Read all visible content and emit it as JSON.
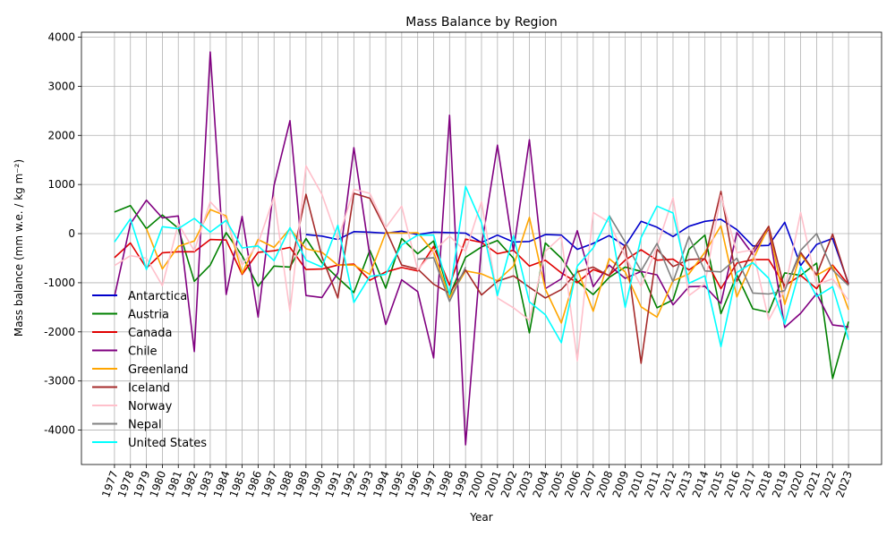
{
  "chart_data": {
    "type": "line",
    "title": "Mass Balance by Region",
    "xlabel": "Year",
    "ylabel": "Mass balance (mm w.e. / kg m⁻²)",
    "ylim": [
      -4700,
      4100
    ],
    "yticks": [
      -4000,
      -3000,
      -2000,
      -1000,
      0,
      1000,
      2000,
      3000,
      4000
    ],
    "grid": true,
    "legend_position": "lower-left",
    "x": [
      1977,
      1978,
      1979,
      1980,
      1981,
      1982,
      1983,
      1984,
      1985,
      1986,
      1987,
      1988,
      1989,
      1990,
      1991,
      1992,
      1993,
      1994,
      1995,
      1996,
      1997,
      1998,
      1999,
      2000,
      2001,
      2002,
      2003,
      2004,
      2005,
      2006,
      2007,
      2008,
      2009,
      2010,
      2011,
      2012,
      2013,
      2014,
      2015,
      2016,
      2017,
      2018,
      2019,
      2020,
      2021,
      2022,
      2023
    ],
    "series": [
      {
        "name": "Antarctica",
        "color": "#0000cc",
        "values": [
          null,
          null,
          null,
          null,
          null,
          null,
          null,
          null,
          null,
          null,
          null,
          null,
          -20,
          -50,
          -120,
          40,
          30,
          10,
          50,
          -20,
          30,
          20,
          10,
          -180,
          -30,
          -170,
          -160,
          -20,
          -30,
          -320,
          -200,
          -40,
          -250,
          250,
          130,
          -60,
          150,
          250,
          290,
          80,
          -250,
          -240,
          230,
          -650,
          -220,
          -100,
          -1020
        ]
      },
      {
        "name": "Austria",
        "color": "#008000",
        "values": [
          440,
          570,
          100,
          380,
          110,
          -970,
          -640,
          20,
          -450,
          -1070,
          -660,
          -680,
          -100,
          -590,
          -900,
          -1200,
          -340,
          -1110,
          -100,
          -410,
          -150,
          -1260,
          -480,
          -270,
          -140,
          -500,
          -2020,
          -190,
          -500,
          -970,
          -1240,
          -890,
          -680,
          -770,
          -1510,
          -1350,
          -320,
          -30,
          -1630,
          -840,
          -1530,
          -1600,
          -800,
          -850,
          -600,
          -2950,
          -1790
        ]
      },
      {
        "name": "Canada",
        "color": "#e00000",
        "values": [
          -490,
          -190,
          -700,
          -390,
          -370,
          -370,
          -120,
          -130,
          -830,
          -380,
          -350,
          -280,
          -730,
          -720,
          -640,
          -620,
          -950,
          -780,
          -690,
          -760,
          -260,
          -1050,
          -110,
          -180,
          -410,
          -340,
          -660,
          -540,
          -800,
          -1000,
          -730,
          -850,
          -540,
          -330,
          -540,
          -520,
          -740,
          -510,
          -1120,
          -600,
          -530,
          -530,
          -1060,
          -850,
          -1120,
          -640,
          -1040
        ]
      },
      {
        "name": "Chile",
        "color": "#800080",
        "values": [
          -1280,
          200,
          680,
          320,
          360,
          -2400,
          3700,
          -1240,
          350,
          -1700,
          980,
          2300,
          -1260,
          -1300,
          -800,
          1750,
          -450,
          -1850,
          -940,
          -1180,
          -2530,
          2410,
          -4300,
          -250,
          1800,
          -350,
          1910,
          -1120,
          -920,
          60,
          -1080,
          -640,
          -910,
          -770,
          -840,
          -1450,
          -1080,
          -1070,
          -1420,
          20,
          -420,
          100,
          -1910,
          -1620,
          -1220,
          -1860,
          -1900
        ]
      },
      {
        "name": "Greenland",
        "color": "#ffa500",
        "values": [
          null,
          null,
          100,
          -720,
          -260,
          -150,
          490,
          360,
          -810,
          -120,
          -280,
          100,
          -310,
          -380,
          -640,
          -640,
          -830,
          20,
          10,
          20,
          -380,
          -1300,
          -760,
          -820,
          -960,
          -660,
          330,
          -1130,
          -1820,
          -720,
          -1580,
          -510,
          -780,
          -1490,
          -1700,
          -960,
          -820,
          -380,
          160,
          -1290,
          -540,
          140,
          -1440,
          -420,
          -850,
          -660,
          -1550
        ]
      },
      {
        "name": "Iceland",
        "color": "#a52a2a",
        "values": [
          null,
          null,
          null,
          null,
          null,
          null,
          null,
          null,
          null,
          null,
          null,
          -750,
          800,
          -470,
          -1310,
          820,
          720,
          80,
          -640,
          -720,
          -1030,
          -1210,
          -740,
          -1250,
          -970,
          -860,
          -1090,
          -1310,
          -1140,
          -780,
          -680,
          -860,
          -230,
          -2640,
          -320,
          -670,
          -530,
          -510,
          860,
          -970,
          -340,
          150,
          -1140,
          -380,
          -840,
          -10,
          -1040
        ]
      },
      {
        "name": "Norway",
        "color": "#ffc0cb",
        "values": [
          -650,
          -450,
          -500,
          -1060,
          200,
          -350,
          650,
          300,
          -640,
          -200,
          750,
          -1590,
          1380,
          800,
          -130,
          900,
          820,
          120,
          560,
          -740,
          -360,
          -50,
          -360,
          650,
          -1310,
          -1510,
          -1760,
          -360,
          -60,
          -2590,
          430,
          230,
          -460,
          -1070,
          -270,
          730,
          -1260,
          -1020,
          780,
          -390,
          -330,
          -1760,
          -1140,
          430,
          -1040,
          -920,
          -1360
        ]
      },
      {
        "name": "Nepal",
        "color": "#808080",
        "values": [
          null,
          null,
          null,
          null,
          null,
          null,
          null,
          null,
          null,
          null,
          null,
          null,
          null,
          null,
          null,
          null,
          null,
          null,
          null,
          -520,
          -490,
          -1380,
          -680,
          null,
          null,
          null,
          null,
          null,
          null,
          null,
          null,
          370,
          -170,
          -760,
          -200,
          -980,
          -60,
          -760,
          -780,
          -500,
          -1210,
          -1230,
          -1160,
          -340,
          0,
          -740,
          -1060
        ]
      },
      {
        "name": "United States",
        "color": "#00ffff",
        "values": [
          -170,
          300,
          -730,
          140,
          100,
          310,
          30,
          270,
          -290,
          -250,
          -550,
          120,
          -540,
          -680,
          170,
          -1400,
          -870,
          -830,
          -230,
          -30,
          -30,
          -1240,
          960,
          220,
          -1260,
          -40,
          -1390,
          -1650,
          -2220,
          -660,
          -290,
          350,
          -1500,
          -80,
          560,
          420,
          -1010,
          -860,
          -2300,
          -790,
          -590,
          -910,
          -1840,
          -670,
          -1280,
          -1080,
          -2160
        ]
      }
    ]
  }
}
